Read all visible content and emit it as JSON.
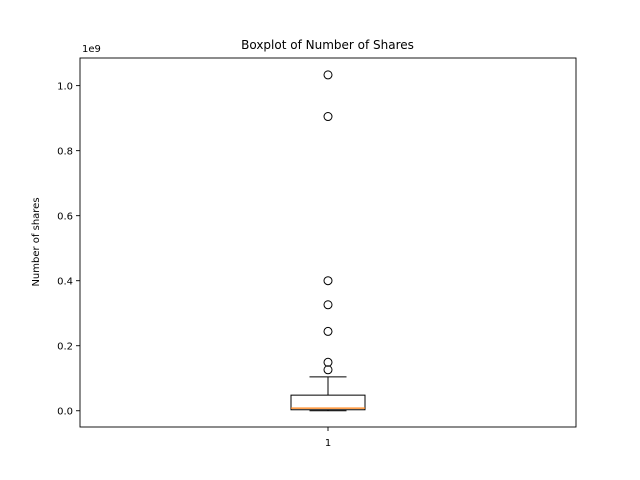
{
  "chart_data": {
    "type": "boxplot",
    "title": "Boxplot of Number of Shares",
    "xlabel": "",
    "ylabel": "Number of shares",
    "offset_label": "1e9",
    "ylim": [
      -0.05,
      1.085
    ],
    "y_ticks": [
      0.0,
      0.2,
      0.4,
      0.6,
      0.8,
      1.0
    ],
    "y_tick_labels": [
      "0.0",
      "0.2",
      "0.4",
      "0.6",
      "0.8",
      "1.0"
    ],
    "x_ticks": [
      1
    ],
    "x_tick_labels": [
      "1"
    ],
    "grid": false,
    "boxes": [
      {
        "position": 1,
        "whisker_low": 0.0,
        "q1": 0.003,
        "median": 0.008,
        "q3": 0.048,
        "whisker_high": 0.104,
        "outliers": [
          0.126,
          0.149,
          0.244,
          0.326,
          0.4,
          0.905,
          1.033
        ]
      }
    ],
    "colors": {
      "box": "#000000",
      "median": "#ff7f0e",
      "outlier": "#000000"
    }
  }
}
